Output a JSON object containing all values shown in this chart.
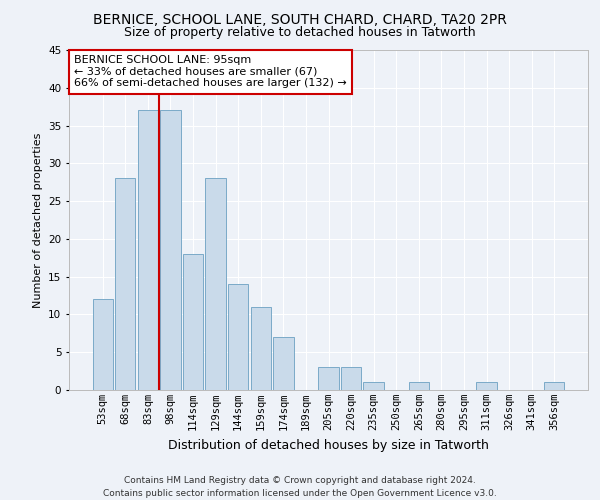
{
  "title1": "BERNICE, SCHOOL LANE, SOUTH CHARD, CHARD, TA20 2PR",
  "title2": "Size of property relative to detached houses in Tatworth",
  "xlabel": "Distribution of detached houses by size in Tatworth",
  "ylabel": "Number of detached properties",
  "categories": [
    "53sqm",
    "68sqm",
    "83sqm",
    "98sqm",
    "114sqm",
    "129sqm",
    "144sqm",
    "159sqm",
    "174sqm",
    "189sqm",
    "205sqm",
    "220sqm",
    "235sqm",
    "250sqm",
    "265sqm",
    "280sqm",
    "295sqm",
    "311sqm",
    "326sqm",
    "341sqm",
    "356sqm"
  ],
  "values": [
    12,
    28,
    37,
    37,
    18,
    28,
    14,
    11,
    7,
    0,
    3,
    3,
    1,
    0,
    1,
    0,
    0,
    1,
    0,
    0,
    1
  ],
  "bar_color": "#c9daea",
  "bar_edge_color": "#7aaac8",
  "vline_x_idx": 3,
  "vline_color": "#cc0000",
  "annotation_text": "BERNICE SCHOOL LANE: 95sqm\n← 33% of detached houses are smaller (67)\n66% of semi-detached houses are larger (132) →",
  "annotation_box_color": "#ffffff",
  "annotation_box_edge_color": "#cc0000",
  "ylim": [
    0,
    45
  ],
  "yticks": [
    0,
    5,
    10,
    15,
    20,
    25,
    30,
    35,
    40,
    45
  ],
  "background_color": "#eef2f8",
  "grid_color": "#ffffff",
  "footer": "Contains HM Land Registry data © Crown copyright and database right 2024.\nContains public sector information licensed under the Open Government Licence v3.0.",
  "title1_fontsize": 10,
  "title2_fontsize": 9,
  "xlabel_fontsize": 9,
  "ylabel_fontsize": 8,
  "tick_fontsize": 7.5,
  "annot_fontsize": 8,
  "footer_fontsize": 6.5
}
